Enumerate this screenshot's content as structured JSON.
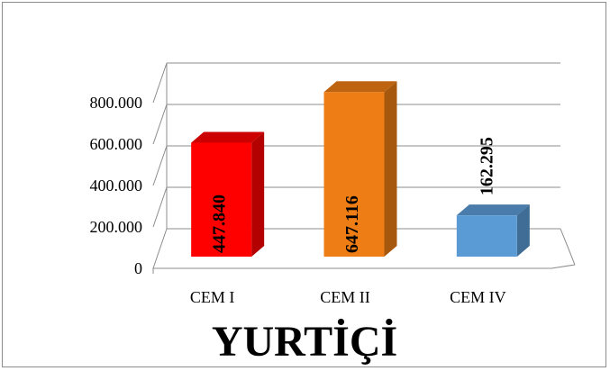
{
  "chart_data": {
    "type": "bar",
    "title": "YURTİÇİ",
    "categories": [
      "CEM I",
      "CEM II",
      "CEM IV"
    ],
    "values": [
      447840,
      647116,
      162295
    ],
    "value_labels": [
      "447.840",
      "647.116",
      "162.295"
    ],
    "y_ticks": [
      {
        "value": 0,
        "label": "0"
      },
      {
        "value": 200000,
        "label": "200.000"
      },
      {
        "value": 400000,
        "label": "400.000"
      },
      {
        "value": 600000,
        "label": "600.000"
      },
      {
        "value": 800000,
        "label": "800.000"
      }
    ],
    "ylim": [
      0,
      800000
    ],
    "grid": true,
    "legend": "none",
    "style": "3d-column",
    "colors": {
      "CEM I": "#ff0000",
      "CEM II": "#ed7d14",
      "CEM IV": "#5b9bd5"
    }
  }
}
